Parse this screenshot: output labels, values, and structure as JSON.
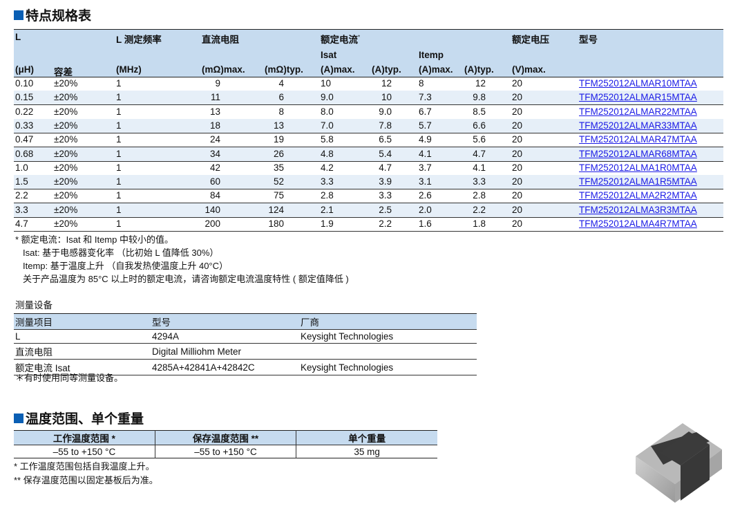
{
  "spec": {
    "title": "特点规格表",
    "headers": {
      "L": "L",
      "L_unit": "(μH)",
      "tol": "容差",
      "freq": "L 测定频率",
      "freq_unit": "(MHz)",
      "dcr": "直流电阻",
      "dcr_max": "(mΩ)max.",
      "dcr_typ": "(mΩ)typ.",
      "rated": "额定电流",
      "rated_mark": "*",
      "isat": "Isat",
      "isat_max": "(A)max.",
      "isat_typ": "(A)typ.",
      "itemp": "Itemp",
      "itemp_max": "(A)max.",
      "itemp_typ": "(A)typ.",
      "volt": "额定电压",
      "volt_unit": "(V)max.",
      "part": "型号"
    },
    "rows": [
      [
        "0.10",
        "±20%",
        "1",
        "9",
        "4",
        "10",
        "12",
        "8",
        "12",
        "20",
        "TFM252012ALMAR10MTAA"
      ],
      [
        "0.15",
        "±20%",
        "1",
        "11",
        "6",
        "9.0",
        "10",
        "7.3",
        "9.8",
        "20",
        "TFM252012ALMAR15MTAA"
      ],
      [
        "0.22",
        "±20%",
        "1",
        "13",
        "8",
        "8.0",
        "9.0",
        "6.7",
        "8.5",
        "20",
        "TFM252012ALMAR22MTAA"
      ],
      [
        "0.33",
        "±20%",
        "1",
        "18",
        "13",
        "7.0",
        "7.8",
        "5.7",
        "6.6",
        "20",
        "TFM252012ALMAR33MTAA"
      ],
      [
        "0.47",
        "±20%",
        "1",
        "24",
        "19",
        "5.8",
        "6.5",
        "4.9",
        "5.6",
        "20",
        "TFM252012ALMAR47MTAA"
      ],
      [
        "0.68",
        "±20%",
        "1",
        "34",
        "26",
        "4.8",
        "5.4",
        "4.1",
        "4.7",
        "20",
        "TFM252012ALMAR68MTAA"
      ],
      [
        "1.0",
        "±20%",
        "1",
        "42",
        "35",
        "4.2",
        "4.7",
        "3.7",
        "4.1",
        "20",
        "TFM252012ALMA1R0MTAA"
      ],
      [
        "1.5",
        "±20%",
        "1",
        "60",
        "52",
        "3.3",
        "3.9",
        "3.1",
        "3.3",
        "20",
        "TFM252012ALMA1R5MTAA"
      ],
      [
        "2.2",
        "±20%",
        "1",
        "84",
        "75",
        "2.8",
        "3.3",
        "2.6",
        "2.8",
        "20",
        "TFM252012ALMA2R2MTAA"
      ],
      [
        "3.3",
        "±20%",
        "1",
        "140",
        "124",
        "2.1",
        "2.5",
        "2.0",
        "2.2",
        "20",
        "TFM252012ALMA3R3MTAA"
      ],
      [
        "4.7",
        "±20%",
        "1",
        "200",
        "180",
        "1.9",
        "2.2",
        "1.6",
        "1.8",
        "20",
        "TFM252012ALMA4R7MTAA"
      ]
    ],
    "notes": [
      "* 额定电流：Isat 和 Itemp 中较小的值。",
      "Isat: 基于电感器变化率 （比初始 L 值降低 30%）",
      "Itemp: 基于温度上升 （自我发热使温度上升 40°C）",
      "关于产品温度为 85°C 以上时的额定电流，请咨询额定电流温度特性 ( 额定值降低 )"
    ]
  },
  "equipment": {
    "title": "测量设备",
    "headers": [
      "测量项目",
      "型号",
      "厂商"
    ],
    "rows": [
      [
        "L",
        "4294A",
        "Keysight Technologies"
      ],
      [
        "直流电阻",
        "Digital Milliohm Meter",
        ""
      ],
      [
        "额定电流 Isat",
        "4285A+42841A+42842C",
        "Keysight Technologies"
      ]
    ],
    "note": "＊有时使用同等测量设备。"
  },
  "temp": {
    "title": "温度范围、单个重量",
    "headers": [
      "工作温度范围 *",
      "保存温度范围 **",
      "单个重量"
    ],
    "values": [
      "–55 to +150 °C",
      "–55 to +150 °C",
      "35 mg"
    ],
    "notes": [
      "*  工作温度范围包括自我温度上升。",
      "** 保存温度范围以固定基板后为准。"
    ]
  },
  "colors": {
    "accent": "#0a5fb4",
    "header_bg": "#c6dbef",
    "alt_row": "#e6eff8",
    "link": "#1a1ae6"
  }
}
